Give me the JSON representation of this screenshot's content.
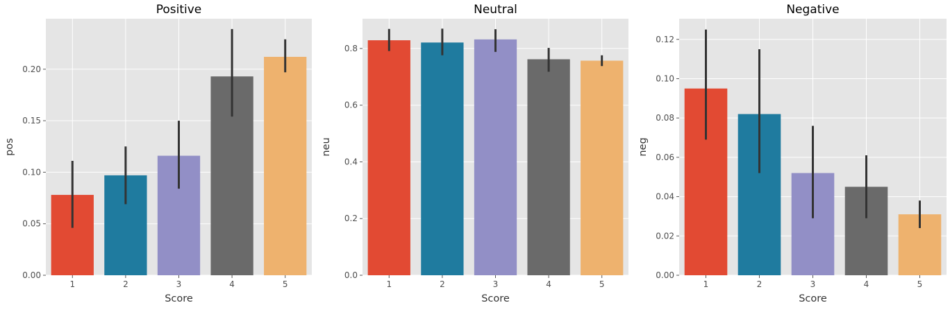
{
  "chart_data": [
    {
      "type": "bar",
      "title": "Positive",
      "xlabel": "Score",
      "ylabel": "pos",
      "categories": [
        "1",
        "2",
        "3",
        "4",
        "5"
      ],
      "values": [
        0.078,
        0.097,
        0.116,
        0.193,
        0.212
      ],
      "error_low": [
        0.046,
        0.069,
        0.084,
        0.154,
        0.197
      ],
      "error_high": [
        0.111,
        0.125,
        0.15,
        0.239,
        0.229
      ],
      "ylim": [
        0,
        0.249
      ],
      "yticks": [
        0.0,
        0.05,
        0.1,
        0.15,
        0.2
      ],
      "ytick_labels": [
        "0.00",
        "0.05",
        "0.10",
        "0.15",
        "0.20"
      ],
      "grid": true
    },
    {
      "type": "bar",
      "title": "Neutral",
      "xlabel": "Score",
      "ylabel": "neu",
      "categories": [
        "1",
        "2",
        "3",
        "4",
        "5"
      ],
      "values": [
        0.829,
        0.821,
        0.832,
        0.762,
        0.757
      ],
      "error_low": [
        0.791,
        0.776,
        0.788,
        0.718,
        0.738
      ],
      "error_high": [
        0.869,
        0.87,
        0.868,
        0.802,
        0.776
      ],
      "ylim": [
        0,
        0.905
      ],
      "yticks": [
        0.0,
        0.2,
        0.4,
        0.6,
        0.8
      ],
      "ytick_labels": [
        "0.0",
        "0.2",
        "0.4",
        "0.6",
        "0.8"
      ],
      "grid": true
    },
    {
      "type": "bar",
      "title": "Negative",
      "xlabel": "Score",
      "ylabel": "neg",
      "categories": [
        "1",
        "2",
        "3",
        "4",
        "5"
      ],
      "values": [
        0.095,
        0.082,
        0.052,
        0.045,
        0.031
      ],
      "error_low": [
        0.069,
        0.052,
        0.029,
        0.029,
        0.024
      ],
      "error_high": [
        0.125,
        0.115,
        0.076,
        0.061,
        0.038
      ],
      "ylim": [
        0,
        0.1305
      ],
      "yticks": [
        0.0,
        0.02,
        0.04,
        0.06,
        0.08,
        0.1,
        0.12
      ],
      "ytick_labels": [
        "0.00",
        "0.02",
        "0.04",
        "0.06",
        "0.08",
        "0.10",
        "0.12"
      ],
      "grid": true
    }
  ],
  "palette": [
    "#e24a33",
    "#1f7b9f",
    "#928fc6",
    "#6a6a6a",
    "#eeb26e"
  ],
  "plot_background": "#e5e5e5",
  "grid_color": "#ffffff",
  "error_bar_color": "#333333"
}
